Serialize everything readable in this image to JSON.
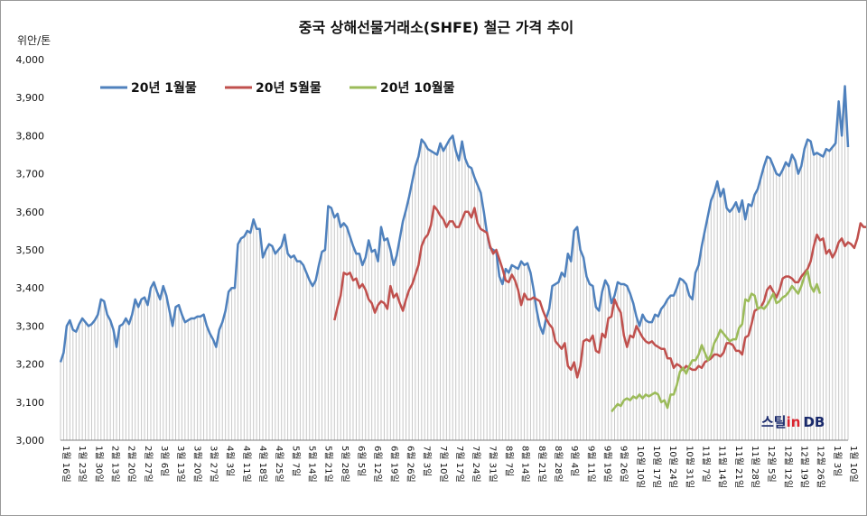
{
  "chart_data": {
    "type": "line",
    "title": "중국 상해선물거래소(SHFE) 철근 가격 추이",
    "unit": "위안/톤",
    "ylim": [
      3000,
      4000
    ],
    "yticks": [
      "3,000",
      "3,100",
      "3,200",
      "3,300",
      "3,400",
      "3,500",
      "3,600",
      "3,700",
      "3,800",
      "3,900",
      "4,000"
    ],
    "x_labels": [
      "1월 16일",
      "1월 23일",
      "1월 30일",
      "2월 13일",
      "2월 20일",
      "2월 27일",
      "3월 6일",
      "3월 13일",
      "3월 20일",
      "3월 27일",
      "4월 3일",
      "4월 11일",
      "4월 18일",
      "4월 25일",
      "5월 7일",
      "5월 14일",
      "5월 21일",
      "5월 28일",
      "6월 5일",
      "6월 12일",
      "6월 19일",
      "6월 26일",
      "7월 3일",
      "7월 10일",
      "7월 17일",
      "7월 24일",
      "7월 31일",
      "8월 7일",
      "8월 14일",
      "8월 21일",
      "8월 28일",
      "9월 4일",
      "9월 11일",
      "9월 19일",
      "9월 26일",
      "10월 10일",
      "10월 17일",
      "10월 24일",
      "10월 31일",
      "11월 7일",
      "11월 14일",
      "11월 21일",
      "11월 28일",
      "12월 5일",
      "12월 12일",
      "12월 19일",
      "12월 26일",
      "1월 3일",
      "1월 10일"
    ],
    "grid": false,
    "legend_position": "top-left",
    "series": [
      {
        "name": "20년 1월물",
        "color": "#4f81bd",
        "start_index": 0,
        "values": [
          3205,
          3230,
          3300,
          3315,
          3290,
          3285,
          3305,
          3320,
          3310,
          3300,
          3305,
          3315,
          3330,
          3370,
          3365,
          3330,
          3315,
          3290,
          3245,
          3300,
          3305,
          3320,
          3305,
          3330,
          3370,
          3350,
          3370,
          3375,
          3355,
          3400,
          3415,
          3390,
          3370,
          3405,
          3380,
          3340,
          3300,
          3350,
          3355,
          3330,
          3310,
          3315,
          3320,
          3320,
          3325,
          3325,
          3330,
          3300,
          3280,
          3265,
          3245,
          3290,
          3310,
          3340,
          3390,
          3400,
          3400,
          3515,
          3530,
          3535,
          3550,
          3545,
          3580,
          3555,
          3555,
          3480,
          3500,
          3515,
          3510,
          3490,
          3500,
          3510,
          3540,
          3490,
          3480,
          3485,
          3470,
          3470,
          3460,
          3440,
          3420,
          3405,
          3420,
          3460,
          3495,
          3500,
          3615,
          3610,
          3585,
          3595,
          3560,
          3570,
          3560,
          3535,
          3510,
          3490,
          3490,
          3460,
          3480,
          3525,
          3495,
          3500,
          3470,
          3560,
          3525,
          3530,
          3500,
          3460,
          3485,
          3530,
          3575,
          3605,
          3640,
          3680,
          3720,
          3745,
          3790,
          3780,
          3765,
          3760,
          3755,
          3750,
          3780,
          3760,
          3775,
          3790,
          3800,
          3760,
          3735,
          3785,
          3740,
          3720,
          3715,
          3690,
          3670,
          3650,
          3600,
          3545,
          3505,
          3500,
          3495,
          3430,
          3410,
          3450,
          3440,
          3460,
          3455,
          3450,
          3470,
          3460,
          3465,
          3440,
          3395,
          3340,
          3300,
          3280,
          3320,
          3345,
          3405,
          3410,
          3415,
          3440,
          3430,
          3490,
          3470,
          3550,
          3560,
          3500,
          3480,
          3430,
          3410,
          3405,
          3350,
          3340,
          3390,
          3420,
          3405,
          3360,
          3380,
          3415,
          3410,
          3410,
          3405,
          3385,
          3360,
          3325,
          3300,
          3330,
          3315,
          3310,
          3310,
          3330,
          3325,
          3345,
          3355,
          3370,
          3380,
          3380,
          3400,
          3425,
          3420,
          3410,
          3380,
          3370,
          3440,
          3460,
          3510,
          3550,
          3590,
          3630,
          3650,
          3680,
          3640,
          3660,
          3610,
          3600,
          3610,
          3625,
          3600,
          3630,
          3580,
          3620,
          3615,
          3645,
          3660,
          3690,
          3720,
          3745,
          3740,
          3720,
          3700,
          3695,
          3710,
          3730,
          3720,
          3750,
          3735,
          3700,
          3720,
          3765,
          3790,
          3785,
          3750,
          3755,
          3750,
          3745,
          3765,
          3760,
          3770,
          3780,
          3890,
          3800,
          3930,
          3770
        ]
      },
      {
        "name": "20년 5월물",
        "color": "#c0504d",
        "start_index": 88,
        "values": [
          3315,
          3350,
          3380,
          3440,
          3435,
          3440,
          3420,
          3425,
          3400,
          3410,
          3395,
          3370,
          3360,
          3335,
          3355,
          3365,
          3360,
          3345,
          3405,
          3375,
          3385,
          3360,
          3340,
          3370,
          3395,
          3410,
          3435,
          3460,
          3510,
          3530,
          3540,
          3565,
          3615,
          3605,
          3590,
          3580,
          3560,
          3575,
          3575,
          3560,
          3560,
          3580,
          3600,
          3600,
          3585,
          3610,
          3570,
          3555,
          3550,
          3545,
          3510,
          3490,
          3500,
          3475,
          3450,
          3420,
          3415,
          3435,
          3420,
          3395,
          3355,
          3385,
          3370,
          3370,
          3375,
          3370,
          3365,
          3340,
          3320,
          3305,
          3295,
          3260,
          3250,
          3240,
          3255,
          3195,
          3185,
          3205,
          3165,
          3195,
          3260,
          3265,
          3260,
          3275,
          3235,
          3230,
          3280,
          3270,
          3320,
          3325,
          3370,
          3350,
          3335,
          3275,
          3245,
          3275,
          3270,
          3300,
          3285,
          3270,
          3260,
          3255,
          3260,
          3250,
          3245,
          3240,
          3240,
          3215,
          3215,
          3190,
          3200,
          3195,
          3185,
          3195,
          3190,
          3185,
          3185,
          3195,
          3190,
          3205,
          3210,
          3215,
          3225,
          3225,
          3220,
          3230,
          3255,
          3255,
          3250,
          3235,
          3235,
          3225,
          3270,
          3275,
          3305,
          3340,
          3345,
          3350,
          3365,
          3395,
          3405,
          3390,
          3375,
          3395,
          3425,
          3430,
          3430,
          3425,
          3415,
          3415,
          3430,
          3440,
          3450,
          3470,
          3510,
          3540,
          3525,
          3530,
          3490,
          3500,
          3480,
          3495,
          3520,
          3530,
          3510,
          3520,
          3515,
          3505,
          3530,
          3570,
          3560,
          3560,
          3545,
          3540,
          3555,
          3560,
          3575,
          3620,
          3560,
          3545,
          3570,
          3535
        ]
      },
      {
        "name": "20년 10월물",
        "color": "#9bbb59",
        "start_index": 177,
        "values": [
          3075,
          3085,
          3095,
          3090,
          3105,
          3110,
          3105,
          3115,
          3110,
          3120,
          3110,
          3120,
          3115,
          3120,
          3125,
          3120,
          3100,
          3105,
          3085,
          3120,
          3120,
          3145,
          3180,
          3190,
          3175,
          3195,
          3210,
          3210,
          3225,
          3250,
          3230,
          3210,
          3225,
          3255,
          3270,
          3290,
          3280,
          3270,
          3260,
          3265,
          3265,
          3295,
          3305,
          3370,
          3365,
          3385,
          3380,
          3345,
          3350,
          3345,
          3355,
          3370,
          3385,
          3360,
          3365,
          3375,
          3380,
          3390,
          3405,
          3395,
          3385,
          3405,
          3430,
          3445,
          3405,
          3390,
          3410,
          3385
        ]
      }
    ]
  },
  "logo": {
    "text_a": "스틸",
    "text_b": "in",
    "text_c": "DB",
    "color_dark": "#1a2a6c",
    "color_red": "#d9232d"
  }
}
